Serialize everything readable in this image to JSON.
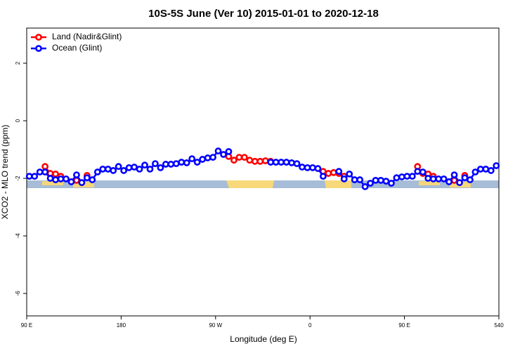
{
  "chart_data": {
    "type": "line",
    "title": "10S-5S June (Ver 10)   2015-01-01 to 2020-12-18",
    "x_label": "Longitude (deg E)",
    "y_label": "XCO2 - MLO trend (ppm)",
    "xlim": [
      90,
      540
    ],
    "ylim": [
      -6.78,
      3.22
    ],
    "xticks": [
      {
        "value": 90,
        "label": "90 E"
      },
      180,
      {
        "value": 270,
        "label": "90 W"
      },
      {
        "value": 360,
        "label": "0"
      },
      {
        "value": 450,
        "label": "90 E"
      },
      540
    ],
    "yticks": [
      -6,
      -4,
      -2,
      0,
      2
    ],
    "legend": "top-left",
    "x": [
      92.5,
      97.5,
      102.5,
      107.5,
      112.5,
      117.5,
      122.5,
      127.5,
      132.5,
      137.5,
      142.5,
      147.5,
      152.5,
      157.5,
      162.5,
      167.5,
      172.5,
      177.5,
      182.5,
      187.5,
      192.5,
      197.5,
      202.5,
      207.5,
      212.5,
      217.5,
      222.5,
      227.5,
      232.5,
      237.5,
      242.5,
      247.5,
      252.5,
      257.5,
      262.5,
      267.5,
      272.5,
      277.5,
      282.5,
      287.5,
      292.5,
      297.5,
      302.5,
      307.5,
      312.5,
      317.5,
      322.5,
      327.5,
      332.5,
      337.5,
      342.5,
      347.5,
      352.5,
      357.5,
      362.5,
      367.5,
      372.5,
      377.5,
      382.5,
      387.5,
      392.5,
      397.5,
      402.5,
      407.5,
      412.5,
      417.5,
      422.5,
      427.5,
      432.5,
      437.5,
      442.5,
      447.5,
      452.5,
      457.5,
      462.5,
      467.5,
      472.5,
      477.5,
      482.5,
      487.5,
      492.5,
      497.5,
      502.5,
      507.5,
      512.5,
      517.5,
      522.5,
      527.5,
      532.5,
      537.5
    ],
    "series": [
      {
        "name": "Land (Nadir&Glint)",
        "color": "#ff0000",
        "values": [
          null,
          null,
          null,
          -1.59,
          -1.83,
          -1.85,
          -1.93,
          null,
          null,
          -2.07,
          null,
          -1.9,
          null,
          null,
          null,
          null,
          null,
          null,
          null,
          null,
          null,
          null,
          null,
          null,
          null,
          null,
          null,
          null,
          null,
          null,
          null,
          null,
          null,
          null,
          null,
          null,
          null,
          null,
          -1.24,
          -1.37,
          -1.27,
          -1.27,
          -1.37,
          -1.41,
          -1.41,
          -1.39,
          -1.41,
          null,
          null,
          null,
          null,
          null,
          null,
          null,
          null,
          null,
          -1.76,
          -1.83,
          -1.8,
          -1.83,
          -1.93,
          null,
          null,
          null,
          null,
          null,
          null,
          null,
          null,
          null,
          null,
          null,
          null,
          null,
          -1.59,
          -1.83,
          -1.85,
          -1.93,
          null,
          null,
          null,
          -2.07,
          null,
          -1.9,
          null,
          null,
          null,
          null,
          null,
          null
        ]
      },
      {
        "name": "Ocean (Glint)",
        "color": "#0000ff",
        "values": [
          -1.93,
          -1.93,
          -1.78,
          -1.78,
          -2.0,
          -2.05,
          -2.02,
          -2.02,
          -2.12,
          -1.88,
          -2.15,
          -1.98,
          -2.05,
          -1.78,
          -1.68,
          -1.68,
          -1.73,
          -1.59,
          -1.73,
          -1.63,
          -1.61,
          -1.68,
          -1.54,
          -1.68,
          -1.49,
          -1.63,
          -1.51,
          -1.51,
          -1.49,
          -1.44,
          -1.46,
          -1.32,
          -1.44,
          -1.34,
          -1.29,
          -1.27,
          -1.05,
          -1.17,
          -1.07,
          null,
          null,
          null,
          null,
          null,
          null,
          null,
          -1.44,
          -1.44,
          -1.44,
          -1.44,
          -1.46,
          -1.49,
          -1.61,
          -1.63,
          -1.63,
          -1.66,
          -1.93,
          null,
          null,
          -1.76,
          -2.02,
          -1.85,
          -2.05,
          -2.05,
          -2.29,
          -2.17,
          -2.07,
          -2.07,
          -2.1,
          -2.17,
          -1.98,
          -1.95,
          -1.93,
          -1.93,
          -1.76,
          -1.78,
          -2.0,
          -2.02,
          -2.02,
          -2.02,
          -2.12,
          -1.88,
          -2.15,
          -1.98,
          -2.05,
          -1.78,
          -1.68,
          -1.68,
          -1.73,
          -1.56
        ]
      }
    ]
  }
}
